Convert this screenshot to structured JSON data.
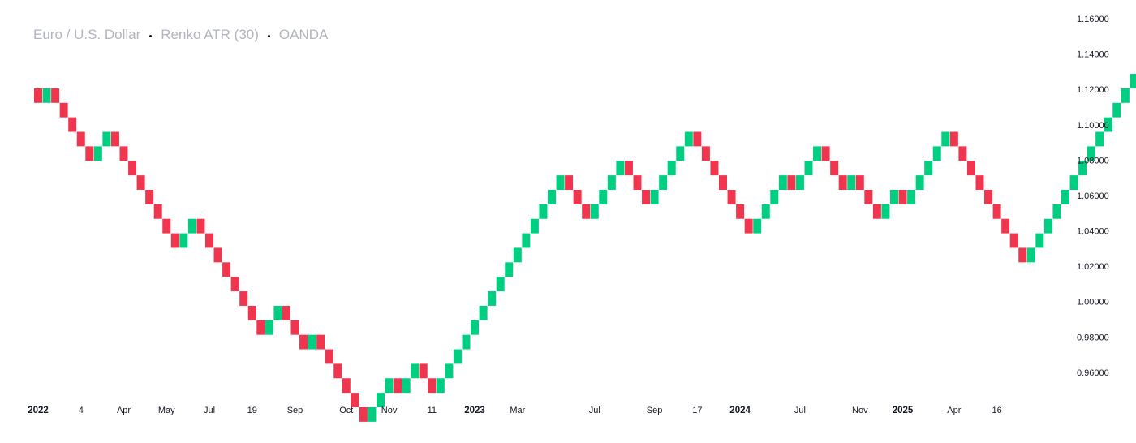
{
  "header": {
    "symbol": "Euro / U.S. Dollar",
    "chart_style": "Renko ATR (30)",
    "source": "OANDA"
  },
  "colors": {
    "up": "#00cf82",
    "down": "#f0364f",
    "axis_text": "#131722",
    "title_text": "#b2b5be",
    "separator": "#131722"
  },
  "chart_data": {
    "type": "renko",
    "title": "Euro / U.S. Dollar · Renko ATR (30) · OANDA",
    "xlabel": "",
    "ylabel": "",
    "ylim": [
      0.948,
      1.166
    ],
    "y_ticks": [
      "1.16000",
      "1.14000",
      "1.12000",
      "1.10000",
      "1.08000",
      "1.06000",
      "1.04000",
      "1.02000",
      "1.00000",
      "0.98000",
      "0.96000"
    ],
    "y_tick_values": [
      1.16,
      1.14,
      1.12,
      1.1,
      1.08,
      1.06,
      1.04,
      1.02,
      1.0,
      0.98,
      0.96
    ],
    "x_ticks": [
      "2022",
      "4",
      "Apr",
      "May",
      "Jul",
      "19",
      "Sep",
      "Oct",
      "Nov",
      "11",
      "2023",
      "Mar",
      "Jul",
      "Sep",
      "17",
      "2024",
      "Jul",
      "Nov",
      "2025",
      "Apr",
      "16"
    ],
    "x_tick_bold": [
      "2022",
      "2023",
      "2024",
      "2025"
    ],
    "x_tick_bricks": [
      0,
      5,
      10,
      15,
      20,
      25,
      30,
      36,
      41,
      46,
      51,
      56,
      65,
      72,
      77,
      82,
      89,
      96,
      101,
      107,
      112
    ],
    "box_size": 0.0082,
    "start_price": 1.1206,
    "bricks": [
      "d",
      "u",
      "d",
      "d",
      "d",
      "d",
      "d",
      "u",
      "u",
      "d",
      "d",
      "d",
      "d",
      "d",
      "d",
      "d",
      "d",
      "u",
      "u",
      "d",
      "d",
      "d",
      "d",
      "d",
      "d",
      "d",
      "d",
      "u",
      "u",
      "d",
      "d",
      "d",
      "u",
      "d",
      "d",
      "d",
      "d",
      "d",
      "d",
      "u",
      "u",
      "u",
      "d",
      "u",
      "u",
      "d",
      "d",
      "u",
      "u",
      "u",
      "u",
      "u",
      "u",
      "u",
      "u",
      "u",
      "u",
      "u",
      "u",
      "u",
      "u",
      "u",
      "d",
      "d",
      "d",
      "u",
      "u",
      "u",
      "u",
      "d",
      "d",
      "d",
      "u",
      "u",
      "u",
      "u",
      "u",
      "d",
      "d",
      "d",
      "d",
      "d",
      "d",
      "d",
      "u",
      "u",
      "u",
      "u",
      "d",
      "u",
      "u",
      "u",
      "d",
      "d",
      "d",
      "u",
      "d",
      "d",
      "d",
      "u",
      "u",
      "d",
      "u",
      "u",
      "u",
      "u",
      "u",
      "d",
      "d",
      "d",
      "d",
      "d",
      "d",
      "d",
      "d",
      "d",
      "u",
      "u",
      "u",
      "u",
      "u",
      "u",
      "u",
      "u",
      "u",
      "u",
      "u",
      "u",
      "u",
      "u",
      "u",
      "u",
      "u"
    ]
  }
}
